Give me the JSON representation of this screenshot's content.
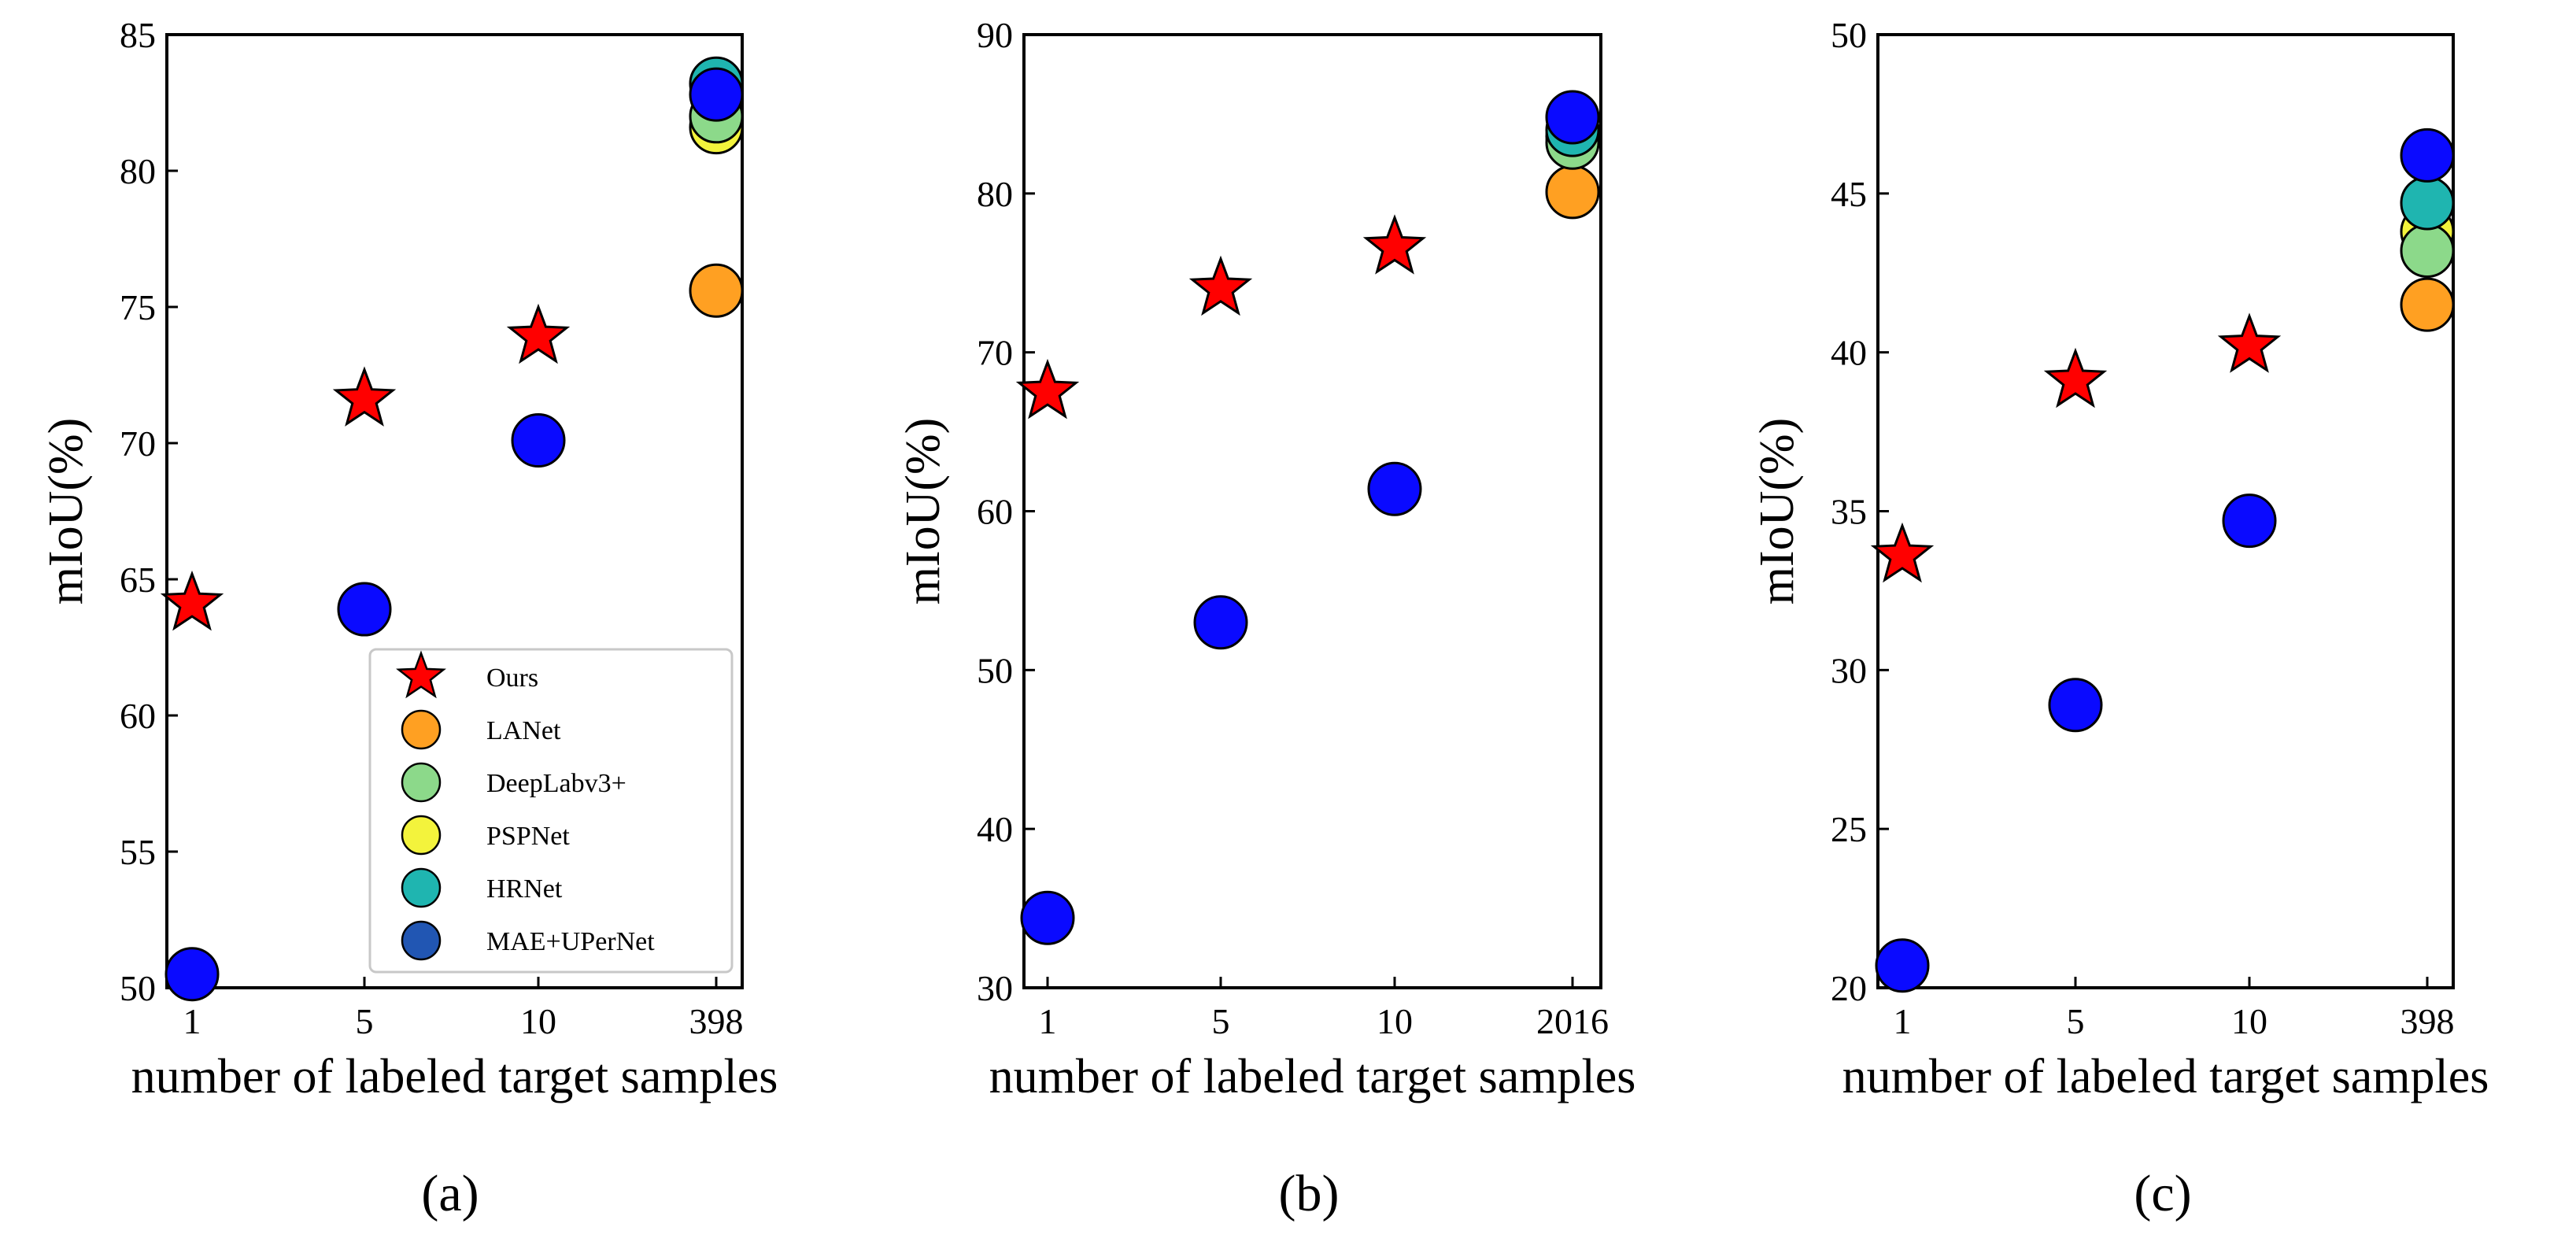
{
  "figure": {
    "panels": [
      "a",
      "b",
      "c"
    ]
  },
  "colors": {
    "Ours": "#ff0000",
    "LANet": "#ffa022",
    "DeepLabv3+": "#8cd98a",
    "PSPNet": "#f3f33c",
    "HRNet": "#1fb5b0",
    "MAE+UPerNet": "#0a0aff",
    "MAE+UPerNet_legend": "#2156b3"
  },
  "chart_data": [
    {
      "type": "scatter",
      "caption": "(a)",
      "xlabel": "number of labeled target samples",
      "ylabel": "mIoU(%)",
      "categories": [
        "1",
        "5",
        "10",
        "398"
      ],
      "ylim": [
        50,
        85
      ],
      "yticks": [
        50,
        55,
        60,
        65,
        70,
        75,
        80,
        85
      ],
      "legend": {
        "location": "lower-right",
        "entries": [
          "Ours",
          "LANet",
          "DeepLabv3+",
          "PSPNet",
          "HRNet",
          "MAE+UPerNet"
        ]
      },
      "series": [
        {
          "name": "Ours",
          "marker": "star",
          "values": [
            64.1,
            71.6,
            73.9,
            null
          ]
        },
        {
          "name": "LANet",
          "marker": "circle",
          "values": [
            null,
            null,
            null,
            75.6
          ]
        },
        {
          "name": "DeepLabv3+",
          "marker": "circle",
          "values": [
            null,
            null,
            null,
            82.0
          ]
        },
        {
          "name": "PSPNet",
          "marker": "circle",
          "values": [
            null,
            null,
            null,
            81.6
          ]
        },
        {
          "name": "HRNet",
          "marker": "circle",
          "values": [
            null,
            null,
            null,
            83.2
          ]
        },
        {
          "name": "MAE+UPerNet",
          "marker": "circle",
          "values": [
            50.5,
            63.9,
            70.1,
            82.8
          ]
        }
      ]
    },
    {
      "type": "scatter",
      "caption": "(b)",
      "xlabel": "number of labeled target samples",
      "ylabel": "mIoU(%)",
      "categories": [
        "1",
        "5",
        "10",
        "2016"
      ],
      "ylim": [
        30,
        90
      ],
      "yticks": [
        30,
        40,
        50,
        60,
        70,
        80,
        90
      ],
      "series": [
        {
          "name": "Ours",
          "marker": "star",
          "values": [
            67.5,
            74.0,
            76.6,
            null
          ]
        },
        {
          "name": "LANet",
          "marker": "circle",
          "values": [
            null,
            null,
            null,
            80.1
          ]
        },
        {
          "name": "DeepLabv3+",
          "marker": "circle",
          "values": [
            null,
            null,
            null,
            83.2
          ]
        },
        {
          "name": "PSPNet",
          "marker": "circle",
          "values": [
            null,
            null,
            null,
            83.6
          ]
        },
        {
          "name": "HRNet",
          "marker": "circle",
          "values": [
            null,
            null,
            null,
            84.0
          ]
        },
        {
          "name": "MAE+UPerNet",
          "marker": "circle",
          "values": [
            34.4,
            53.0,
            61.4,
            84.8
          ]
        }
      ]
    },
    {
      "type": "scatter",
      "caption": "(c)",
      "xlabel": "number of labeled target samples",
      "ylabel": "mIoU(%)",
      "categories": [
        "1",
        "5",
        "10",
        "398"
      ],
      "ylim": [
        20,
        50
      ],
      "yticks": [
        20,
        25,
        30,
        35,
        40,
        45,
        50
      ],
      "series": [
        {
          "name": "Ours",
          "marker": "star",
          "values": [
            33.6,
            39.1,
            40.2,
            null
          ]
        },
        {
          "name": "LANet",
          "marker": "circle",
          "values": [
            null,
            null,
            null,
            41.5
          ]
        },
        {
          "name": "DeepLabv3+",
          "marker": "circle",
          "values": [
            null,
            null,
            null,
            43.2
          ]
        },
        {
          "name": "PSPNet",
          "marker": "circle",
          "values": [
            null,
            null,
            null,
            43.8
          ]
        },
        {
          "name": "HRNet",
          "marker": "circle",
          "values": [
            null,
            null,
            null,
            44.7
          ]
        },
        {
          "name": "MAE+UPerNet",
          "marker": "circle",
          "values": [
            20.7,
            28.9,
            34.7,
            46.2
          ]
        }
      ]
    }
  ]
}
